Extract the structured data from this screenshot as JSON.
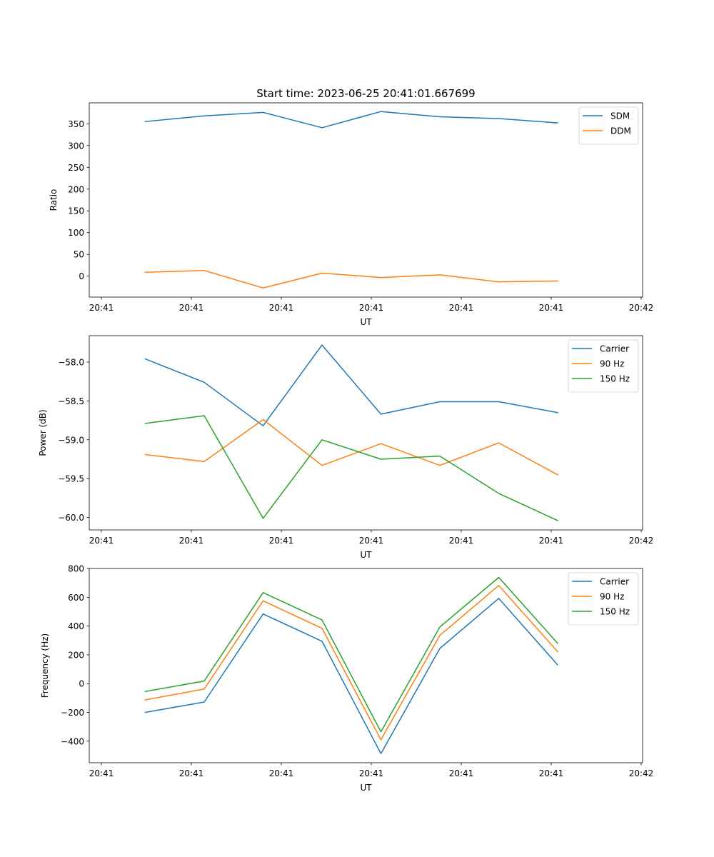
{
  "figure": {
    "title": "Start time: 2023-06-25 20:41:01.667699",
    "x_tick_labels": [
      "20:41",
      "20:41",
      "20:41",
      "20:41",
      "20:41",
      "20:41",
      "20:42"
    ]
  },
  "colors": {
    "blue": "#1f77b4",
    "orange": "#ff7f0e",
    "green": "#2ca02c"
  },
  "chart_data": [
    {
      "type": "line",
      "title": "Start time: 2023-06-25 20:41:01.667699",
      "xlabel": "UT",
      "ylabel": "Ratio",
      "x": [
        1,
        2,
        3,
        4,
        5,
        6,
        7,
        8
      ],
      "ylim": [
        -48,
        398
      ],
      "yticks": [
        0,
        50,
        100,
        150,
        200,
        250,
        300,
        350
      ],
      "legend_position": "top-right",
      "grid": false,
      "series": [
        {
          "name": "SDM",
          "color": "#1f77b4",
          "values": [
            355,
            368,
            376,
            341,
            378,
            366,
            362,
            352
          ]
        },
        {
          "name": "DDM",
          "color": "#ff7f0e",
          "values": [
            9,
            13,
            -27,
            7,
            -3,
            3,
            -13,
            -11
          ]
        }
      ]
    },
    {
      "type": "line",
      "title": "",
      "xlabel": "UT",
      "ylabel": "Power (dB)",
      "x": [
        1,
        2,
        3,
        4,
        5,
        6,
        7,
        8
      ],
      "ylim": [
        -60.16,
        -57.66
      ],
      "yticks": [
        -60.0,
        -59.5,
        -59.0,
        -58.5,
        -58.0
      ],
      "legend_position": "top-right",
      "grid": false,
      "series": [
        {
          "name": "Carrier",
          "color": "#1f77b4",
          "values": [
            -57.96,
            -58.26,
            -58.82,
            -57.78,
            -58.67,
            -58.51,
            -58.51,
            -58.65
          ]
        },
        {
          "name": "90 Hz",
          "color": "#ff7f0e",
          "values": [
            -59.19,
            -59.28,
            -58.74,
            -59.33,
            -59.05,
            -59.33,
            -59.04,
            -59.45
          ]
        },
        {
          "name": "150 Hz",
          "color": "#2ca02c",
          "values": [
            -58.79,
            -58.69,
            -60.01,
            -59.0,
            -59.25,
            -59.21,
            -59.69,
            -60.04
          ]
        }
      ]
    },
    {
      "type": "line",
      "title": "",
      "xlabel": "UT",
      "ylabel": "Frequency (Hz)",
      "x": [
        1,
        2,
        3,
        4,
        5,
        6,
        7,
        8
      ],
      "ylim": [
        -550,
        800
      ],
      "yticks": [
        -400,
        -200,
        0,
        200,
        400,
        600,
        800
      ],
      "legend_position": "top-right",
      "grid": false,
      "series": [
        {
          "name": "Carrier",
          "color": "#1f77b4",
          "values": [
            -200,
            -128,
            484,
            294,
            -487,
            244,
            592,
            130
          ]
        },
        {
          "name": "90 Hz",
          "color": "#ff7f0e",
          "values": [
            -113,
            -38,
            575,
            384,
            -390,
            335,
            682,
            222
          ]
        },
        {
          "name": "150 Hz",
          "color": "#2ca02c",
          "values": [
            -55,
            18,
            632,
            442,
            -335,
            393,
            738,
            280
          ]
        }
      ]
    }
  ]
}
